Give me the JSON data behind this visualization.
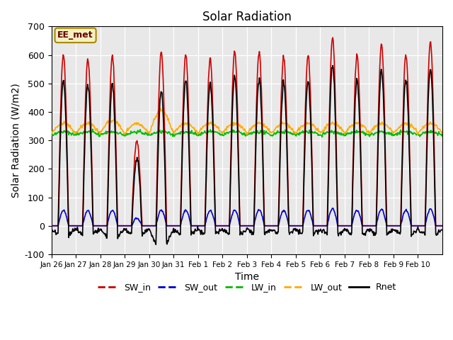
{
  "title": "Solar Radiation",
  "xlabel": "Time",
  "ylabel": "Solar Radiation (W/m2)",
  "ylim": [
    -100,
    700
  ],
  "yticks": [
    -100,
    0,
    100,
    200,
    300,
    400,
    500,
    600,
    700
  ],
  "date_labels": [
    "Jan 26",
    "Jan 27",
    "Jan 28",
    "Jan 29",
    "Jan 30",
    "Jan 31",
    "Feb 1",
    "Feb 2",
    "Feb 3",
    "Feb 4",
    "Feb 5",
    "Feb 6",
    "Feb 7",
    "Feb 8",
    "Feb 9",
    "Feb 10"
  ],
  "station_label": "EE_met",
  "bg_color": "#e8e8e8",
  "series": {
    "SW_in": {
      "color": "#cc0000",
      "lw": 1.2
    },
    "SW_out": {
      "color": "#0000cc",
      "lw": 1.2
    },
    "LW_in": {
      "color": "#00bb00",
      "lw": 1.2
    },
    "LW_out": {
      "color": "#ffaa00",
      "lw": 1.2
    },
    "Rnet": {
      "color": "#000000",
      "lw": 1.2
    }
  },
  "legend_colors": [
    "#cc0000",
    "#0000cc",
    "#00bb00",
    "#ffaa00",
    "#000000"
  ],
  "legend_labels": [
    "SW_in",
    "SW_out",
    "LW_in",
    "LW_out",
    "Rnet"
  ]
}
